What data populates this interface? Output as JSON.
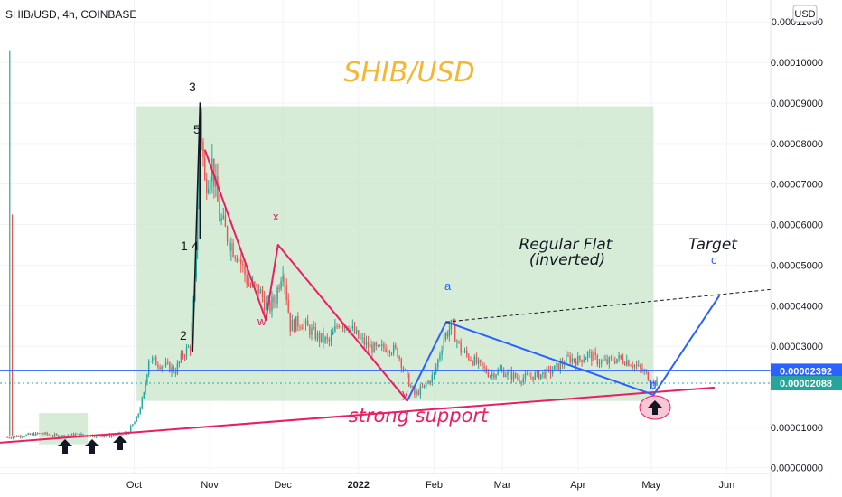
{
  "header": {
    "symbol_info": "SHIB/USD, 4h, COINBASE",
    "currency_button": "USD"
  },
  "chart_data": {
    "type": "line",
    "title": "SHIB/USD",
    "y_ticks": [
      "0.00011000",
      "0.00010000",
      "0.00009000",
      "0.00008000",
      "0.00007000",
      "0.00006000",
      "0.00005000",
      "0.00004000",
      "0.00003000",
      "0.00001000",
      "0.00000000"
    ],
    "y_tick_values": [
      0.00011,
      0.0001,
      9e-05,
      8e-05,
      7e-05,
      6e-05,
      5e-05,
      4e-05,
      3e-05,
      1e-05,
      0.0
    ],
    "ylim": [
      -1.4e-06,
      0.0001154
    ],
    "x_ticks": [
      "Oct",
      "Nov",
      "Dec",
      "2022",
      "Feb",
      "Mar",
      "Apr",
      "May",
      "Jun"
    ],
    "x_tick_dates": [
      "2021-10-01",
      "2021-11-01",
      "2021-12-01",
      "2022-01-01",
      "2022-02-01",
      "2022-03-01",
      "2022-04-01",
      "2022-05-01",
      "2022-06-01"
    ],
    "xlim": [
      "2021-08-07",
      "2022-06-19"
    ],
    "price_labels": [
      {
        "text": "0.00002392",
        "value": 2.392e-05,
        "color": "#2962ff"
      },
      {
        "text": "0.00002088",
        "value": 2.088e-05,
        "color": "#26a69a"
      }
    ],
    "series": [
      {
        "type": "candlestick-approx",
        "color": "#26a69a",
        "down_color": "#ef5350",
        "points": [
          [
            "2021-08-10",
            7.5e-06
          ],
          [
            "2021-08-17",
            8e-06
          ],
          [
            "2021-08-24",
            8.5e-06
          ],
          [
            "2021-08-31",
            7.8e-06
          ],
          [
            "2021-09-07",
            8.2e-06
          ],
          [
            "2021-09-14",
            8e-06
          ],
          [
            "2021-09-21",
            7.9e-06
          ],
          [
            "2021-09-28",
            8.5e-06
          ],
          [
            "2021-10-02",
            1.2e-05
          ],
          [
            "2021-10-05",
            1.8e-05
          ],
          [
            "2021-10-07",
            2.7e-05
          ],
          [
            "2021-10-10",
            2.6e-05
          ],
          [
            "2021-10-14",
            2.5e-05
          ],
          [
            "2021-10-18",
            2.4e-05
          ],
          [
            "2021-10-21",
            2.8e-05
          ],
          [
            "2021-10-24",
            3e-05
          ],
          [
            "2021-10-26",
            4.5e-05
          ],
          [
            "2021-10-27",
            6.5e-05
          ],
          [
            "2021-10-28",
            8.8e-05
          ],
          [
            "2021-10-30",
            7e-05
          ],
          [
            "2021-11-02",
            7.5e-05
          ],
          [
            "2021-11-05",
            6.2e-05
          ],
          [
            "2021-11-09",
            5.6e-05
          ],
          [
            "2021-11-13",
            5.2e-05
          ],
          [
            "2021-11-17",
            4.5e-05
          ],
          [
            "2021-11-21",
            4.4e-05
          ],
          [
            "2021-11-25",
            3.9e-05
          ],
          [
            "2021-11-28",
            4.2e-05
          ],
          [
            "2021-12-01",
            5e-05
          ],
          [
            "2021-12-04",
            3.5e-05
          ],
          [
            "2021-12-08",
            3.6e-05
          ],
          [
            "2021-12-12",
            3.4e-05
          ],
          [
            "2021-12-16",
            3.2e-05
          ],
          [
            "2021-12-20",
            3.1e-05
          ],
          [
            "2021-12-24",
            3.6e-05
          ],
          [
            "2021-12-28",
            3.5e-05
          ],
          [
            "2022-01-01",
            3.2e-05
          ],
          [
            "2022-01-05",
            3e-05
          ],
          [
            "2022-01-09",
            2.9e-05
          ],
          [
            "2022-01-13",
            3e-05
          ],
          [
            "2022-01-17",
            2.85e-05
          ],
          [
            "2022-01-21",
            2.2e-05
          ],
          [
            "2022-01-24",
            1.8e-05
          ],
          [
            "2022-01-28",
            2e-05
          ],
          [
            "2022-02-01",
            2.3e-05
          ],
          [
            "2022-02-05",
            3.2e-05
          ],
          [
            "2022-02-08",
            3.5e-05
          ],
          [
            "2022-02-12",
            2.9e-05
          ],
          [
            "2022-02-16",
            2.7e-05
          ],
          [
            "2022-02-20",
            2.5e-05
          ],
          [
            "2022-02-24",
            2.3e-05
          ],
          [
            "2022-02-28",
            2.4e-05
          ],
          [
            "2022-03-04",
            2.3e-05
          ],
          [
            "2022-03-08",
            2.2e-05
          ],
          [
            "2022-03-12",
            2.25e-05
          ],
          [
            "2022-03-16",
            2.3e-05
          ],
          [
            "2022-03-20",
            2.35e-05
          ],
          [
            "2022-03-24",
            2.5e-05
          ],
          [
            "2022-03-28",
            2.7e-05
          ],
          [
            "2022-04-01",
            2.65e-05
          ],
          [
            "2022-04-05",
            2.8e-05
          ],
          [
            "2022-04-09",
            2.65e-05
          ],
          [
            "2022-04-13",
            2.6e-05
          ],
          [
            "2022-04-17",
            2.7e-05
          ],
          [
            "2022-04-21",
            2.65e-05
          ],
          [
            "2022-04-25",
            2.5e-05
          ],
          [
            "2022-04-29",
            2.3e-05
          ],
          [
            "2022-05-02",
            2.1e-05
          ],
          [
            "2022-05-04",
            2.09e-05
          ]
        ]
      }
    ],
    "annotations": {
      "wave_labels": [
        "3",
        "5",
        "1",
        "4",
        "2",
        "x",
        "w",
        "y",
        "a",
        "b",
        "c"
      ],
      "notes": [
        "Regular Flat",
        "(inverted)",
        "Target",
        "strong support"
      ]
    },
    "colors": {
      "title": "#f5b731",
      "zone_fill": "#c8e6c9",
      "wxy_line": "#e91e63",
      "abc_line": "#2962ff",
      "support_line": "#e91e63",
      "target_dash": "#131722",
      "price_line": "#2962ff"
    }
  }
}
